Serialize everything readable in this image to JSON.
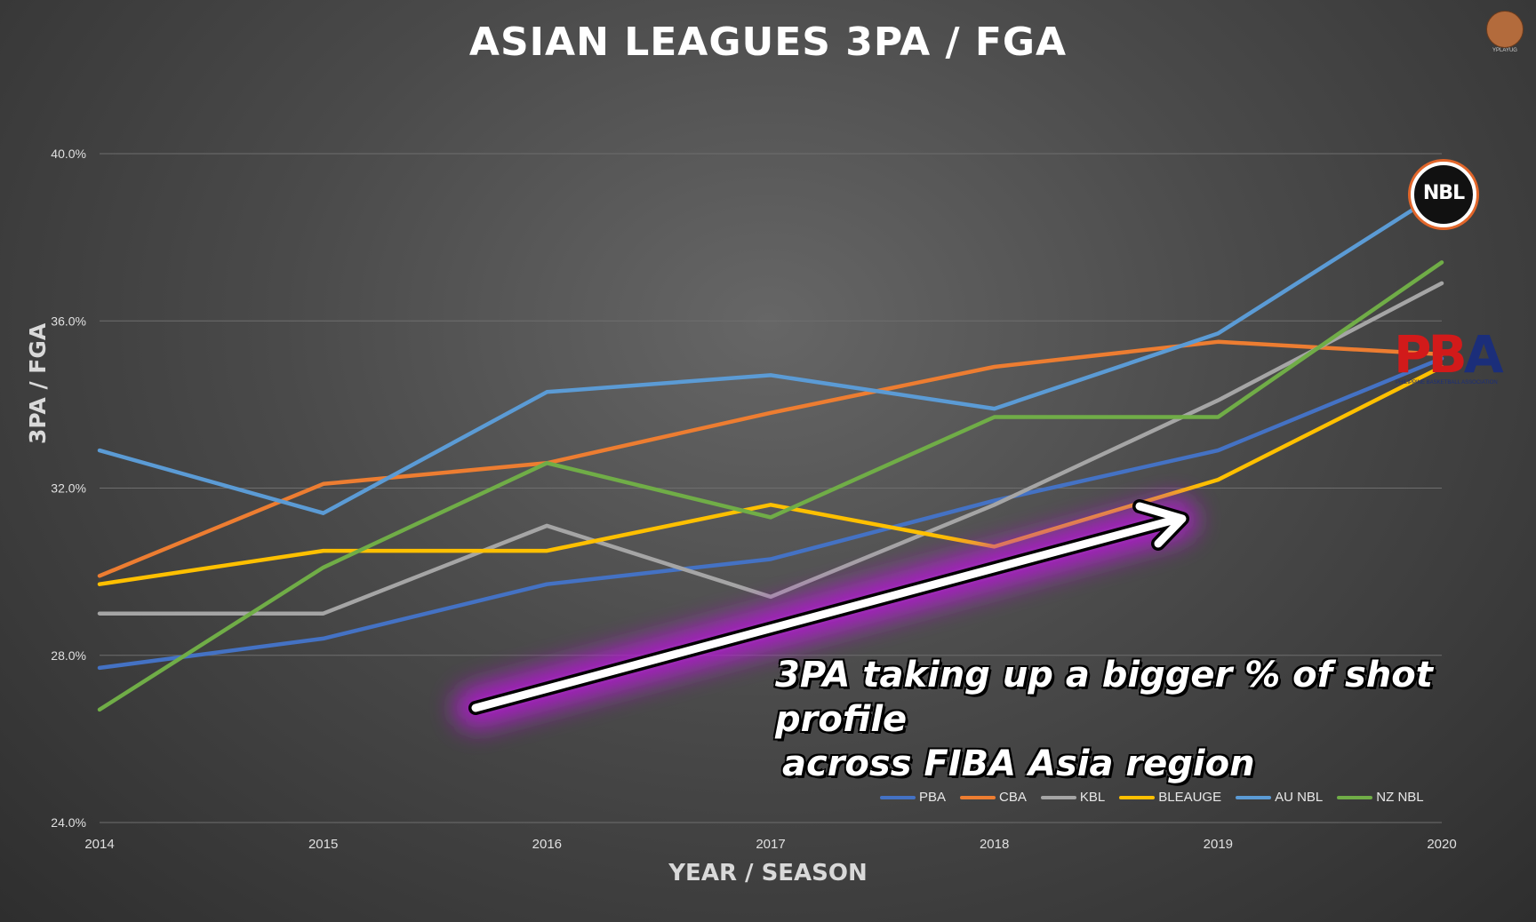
{
  "chart_data": {
    "type": "line",
    "title": "ASIAN LEAGUES 3PA / FGA",
    "xlabel": "YEAR / SEASON",
    "ylabel": "3PA / FGA",
    "categories": [
      "2014",
      "2015",
      "2016",
      "2017",
      "2018",
      "2019",
      "2020"
    ],
    "yticks": [
      "24.0%",
      "28.0%",
      "32.0%",
      "36.0%",
      "40.0%"
    ],
    "ylim": [
      24,
      40
    ],
    "grid": true,
    "legend_position": "bottom-right",
    "series": [
      {
        "name": "PBA",
        "color": "#4472c4",
        "values": [
          27.7,
          28.4,
          29.7,
          30.3,
          31.7,
          32.9,
          35.1
        ]
      },
      {
        "name": "CBA",
        "color": "#ed7d31",
        "values": [
          29.9,
          32.1,
          32.6,
          33.8,
          34.9,
          35.5,
          35.2
        ]
      },
      {
        "name": "KBL",
        "color": "#a5a5a5",
        "values": [
          29.0,
          29.0,
          31.1,
          29.4,
          31.6,
          34.1,
          36.9
        ]
      },
      {
        "name": "BLEAUGE",
        "color": "#ffc000",
        "values": [
          29.7,
          30.5,
          30.5,
          31.6,
          30.6,
          32.2,
          34.9
        ]
      },
      {
        "name": "AU NBL",
        "color": "#5b9bd5",
        "values": [
          32.9,
          31.4,
          34.3,
          34.7,
          33.9,
          35.7,
          39.1
        ]
      },
      {
        "name": "NZ NBL",
        "color": "#70ad47",
        "values": [
          26.7,
          30.1,
          32.6,
          31.3,
          33.7,
          33.7,
          37.4
        ]
      }
    ]
  },
  "annotation": {
    "line1": "3PA taking up a bigger % of shot profile",
    "line2": "across FIBA Asia region"
  },
  "logos": {
    "corner": "YPLAYUG",
    "nbl": "NBL",
    "pba_letters": [
      "P",
      "B",
      "A"
    ],
    "pba_caption": "PHILIPPINE BASKETBALL ASSOCIATION"
  }
}
